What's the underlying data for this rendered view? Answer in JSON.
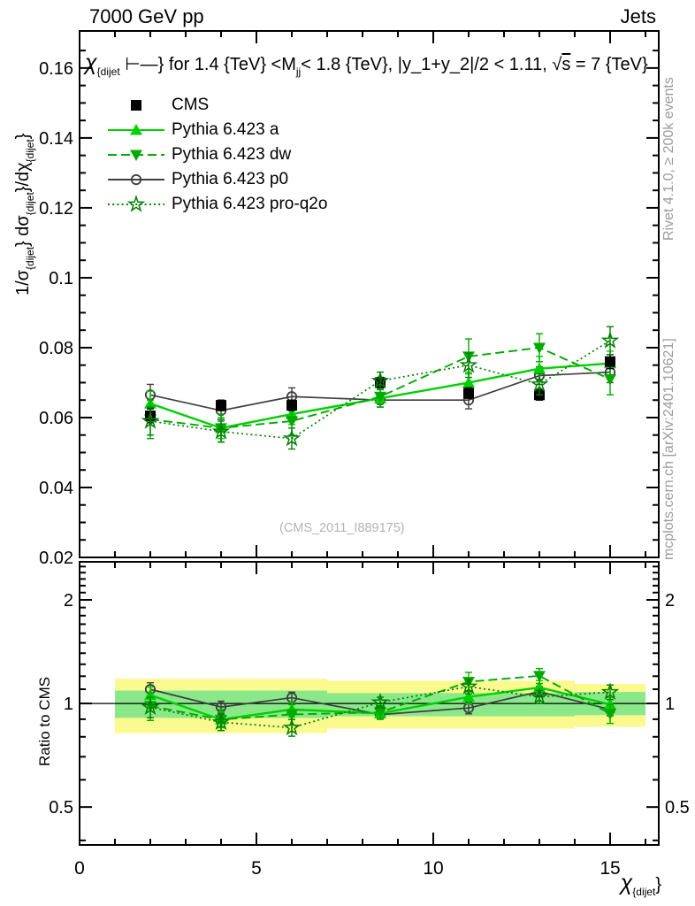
{
  "header": {
    "left": "7000 GeV pp",
    "right": "Jets"
  },
  "watermark": "(CMS_2011_I889175)",
  "side_notes": {
    "rivet": "Rivet 4.1.0, ≥ 200k events",
    "mcplots": "mcplots.cern.ch [arXiv:2401.10621]"
  },
  "title_parts": [
    {
      "t": "χ",
      "s": "big i"
    },
    {
      "t": "{dijet",
      "s": "sub"
    },
    {
      "t": " ⊢—}",
      "s": ""
    },
    {
      "t": " for 1.4 {TeV} <M",
      "s": ""
    },
    {
      "t": "jj",
      "s": "sub"
    },
    {
      "t": "< 1.8 {TeV}, |y_1+y_2|/2 < 1.11, ",
      "s": ""
    },
    {
      "t": "√",
      "s": ""
    },
    {
      "t": "s",
      "s": "ol"
    },
    {
      "t": " = 7 {TeV}",
      "s": ""
    }
  ],
  "axis_labels": {
    "y_parts": [
      {
        "t": "1/σ",
        "s": ""
      },
      {
        "t": "{dijet",
        "s": "sub"
      },
      {
        "t": "} dσ",
        "s": ""
      },
      {
        "t": "{dijet",
        "s": "sub"
      },
      {
        "t": "}/dχ",
        "s": ""
      },
      {
        "t": "{dijet",
        "s": "sub"
      },
      {
        "t": "}",
        "s": ""
      }
    ],
    "x_parts": [
      {
        "t": "χ",
        "s": "big i"
      },
      {
        "t": "{dijet",
        "s": "sub"
      },
      {
        "t": "}",
        "s": ""
      }
    ],
    "ratio_label": "Ratio to CMS"
  },
  "chart_data": {
    "type": "line",
    "title": "chi_dijet for 1.4 TeV < M_jj < 1.8 TeV, |y_1+y_2|/2 < 1.11, sqrt(s) = 7 TeV",
    "x": [
      2,
      4,
      6,
      8.5,
      11,
      13,
      15
    ],
    "bin_edges": [
      1,
      3,
      5,
      7,
      10,
      12,
      14,
      16
    ],
    "x_axis": {
      "lim": [
        0,
        16.375
      ],
      "ticks": [
        0,
        5,
        10,
        15
      ],
      "tick_labels": [
        "0",
        "5",
        "10",
        "15"
      ],
      "minor_ticks": [
        1,
        2,
        3,
        4,
        6,
        7,
        8,
        9,
        11,
        12,
        13,
        14,
        16
      ]
    },
    "main_axis": {
      "lim": [
        0.02,
        0.1706
      ],
      "ticks": [
        0.02,
        0.04,
        0.06,
        0.08,
        0.1,
        0.12,
        0.14,
        0.16
      ],
      "tick_labels": [
        "0.02",
        "0.04",
        "0.06",
        "0.08",
        "0.1",
        "0.12",
        "0.14",
        "0.16"
      ],
      "minor_step": 0.005
    },
    "ratio_axis": {
      "scale": "log",
      "lim": [
        0.388,
        2.58
      ],
      "ticks": [
        0.5,
        1,
        2
      ],
      "tick_labels": [
        "0.5",
        "1",
        "2"
      ],
      "minor_ticks": [
        0.4,
        0.6,
        0.7,
        0.8,
        0.9,
        1.1,
        1.2,
        1.3,
        1.4,
        1.5,
        1.6,
        1.7,
        1.8,
        1.9,
        2.1,
        2.2,
        2.3,
        2.4,
        2.5
      ]
    },
    "reference_series": "CMS",
    "series": [
      {
        "name": "CMS",
        "marker": "square",
        "filled": true,
        "color": "#000000",
        "line": "none",
        "values": [
          0.0605,
          0.0635,
          0.0635,
          0.07,
          0.067,
          0.0665,
          0.076
        ],
        "errors": [
          0.002,
          0.0015,
          0.0015,
          0.0015,
          0.0015,
          0.0015,
          0.002
        ]
      },
      {
        "name": "Pythia 6.423 a",
        "marker": "triangle-up",
        "filled": true,
        "color": "#00d000",
        "line": "solid",
        "values": [
          0.064,
          0.057,
          0.061,
          0.0655,
          0.07,
          0.074,
          0.0755
        ],
        "errors": [
          0.0035,
          0.003,
          0.003,
          0.0025,
          0.003,
          0.0035,
          0.0035
        ]
      },
      {
        "name": "Pythia 6.423 dw",
        "marker": "triangle-down",
        "filled": true,
        "color": "#00aa00",
        "line": "dashed",
        "values": [
          0.0595,
          0.057,
          0.059,
          0.066,
          0.0775,
          0.08,
          0.071
        ],
        "errors": [
          0.0055,
          0.004,
          0.004,
          0.003,
          0.005,
          0.004,
          0.0045
        ]
      },
      {
        "name": "Pythia 6.423 p0",
        "marker": "circle",
        "filled": false,
        "color": "#3f3f3f",
        "line": "solid",
        "values": [
          0.0665,
          0.062,
          0.066,
          0.065,
          0.065,
          0.072,
          0.073
        ],
        "errors": [
          0.003,
          0.0025,
          0.0025,
          0.002,
          0.0025,
          0.0025,
          0.003
        ]
      },
      {
        "name": "Pythia 6.423 pro-q2o",
        "marker": "star",
        "filled": false,
        "color": "#008000",
        "line": "dotted",
        "values": [
          0.059,
          0.056,
          0.054,
          0.0705,
          0.075,
          0.0695,
          0.082
        ],
        "errors": [
          0.004,
          0.003,
          0.003,
          0.0025,
          0.0035,
          0.003,
          0.004
        ]
      }
    ],
    "ratio_bands": {
      "yellow_color": "#fafa8f",
      "green_color": "#8ae88a",
      "yellow": [
        [
          0.82,
          1.18
        ],
        [
          0.82,
          1.18
        ],
        [
          0.82,
          1.18
        ],
        [
          0.845,
          1.165
        ],
        [
          0.845,
          1.165
        ],
        [
          0.845,
          1.165
        ],
        [
          0.855,
          1.14
        ]
      ],
      "green": [
        [
          0.908,
          1.09
        ],
        [
          0.908,
          1.09
        ],
        [
          0.908,
          1.09
        ],
        [
          0.918,
          1.072
        ],
        [
          0.918,
          1.072
        ],
        [
          0.918,
          1.072
        ],
        [
          0.925,
          1.08
        ]
      ]
    }
  }
}
